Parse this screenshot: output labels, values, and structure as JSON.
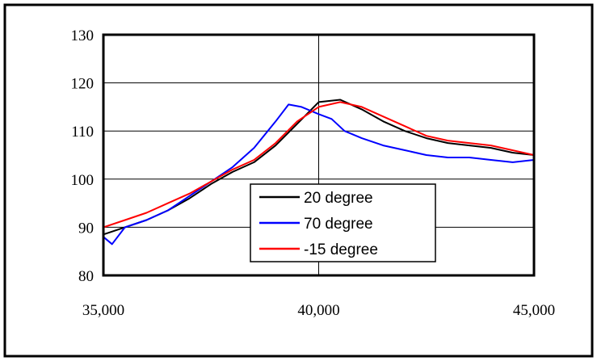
{
  "chart_data": {
    "type": "line",
    "title": "",
    "xlabel": "",
    "ylabel": "",
    "xlim": [
      35000,
      45000
    ],
    "ylim": [
      80,
      130
    ],
    "x_ticks": [
      35000,
      40000,
      45000
    ],
    "x_tick_labels": [
      "35,000",
      "40,000",
      "45,000"
    ],
    "y_ticks": [
      80,
      90,
      100,
      110,
      120,
      130
    ],
    "y_tick_labels": [
      "80",
      "90",
      "100",
      "110",
      "120",
      "130"
    ],
    "grid": "major gridlines at x = 40,000 and every 10 on y",
    "legend_position": "center-bottom inside plot",
    "series": [
      {
        "name": "20 degree",
        "color": "#000000",
        "x": [
          35000,
          35500,
          36000,
          36500,
          37000,
          37500,
          38000,
          38500,
          39000,
          39500,
          40000,
          40500,
          41000,
          41500,
          42000,
          42500,
          43000,
          43500,
          44000,
          44500,
          45000
        ],
        "y": [
          88.5,
          90,
          91.5,
          93.5,
          96,
          99,
          101.5,
          103.5,
          107,
          111.5,
          116,
          116.5,
          114.5,
          112,
          110,
          108.5,
          107.5,
          107,
          106.5,
          105.5,
          105
        ]
      },
      {
        "name": "70 degree",
        "color": "#0000ff",
        "x": [
          35000,
          35200,
          35500,
          36000,
          36500,
          37000,
          37500,
          38000,
          38500,
          39000,
          39300,
          39600,
          40000,
          40300,
          40600,
          41000,
          41500,
          42000,
          42500,
          43000,
          43500,
          44000,
          44500,
          45000
        ],
        "y": [
          88,
          86.5,
          90,
          91.5,
          93.5,
          96.5,
          99.5,
          102.5,
          106.5,
          112,
          115.5,
          115,
          113.5,
          112.5,
          110,
          108.5,
          107,
          106,
          105,
          104.5,
          104.5,
          104,
          103.5,
          104
        ]
      },
      {
        "name": "-15 degree",
        "color": "#ff0000",
        "x": [
          35000,
          35500,
          36000,
          36500,
          37000,
          37500,
          38000,
          38500,
          39000,
          39500,
          40000,
          40500,
          41000,
          41500,
          42000,
          42500,
          43000,
          43500,
          44000,
          44500,
          45000
        ],
        "y": [
          90,
          91.5,
          93,
          95,
          97,
          99.5,
          102,
          104,
          107.5,
          112,
          115,
          116,
          115,
          113,
          111,
          109,
          108,
          107.5,
          107,
          106,
          105
        ]
      }
    ]
  }
}
